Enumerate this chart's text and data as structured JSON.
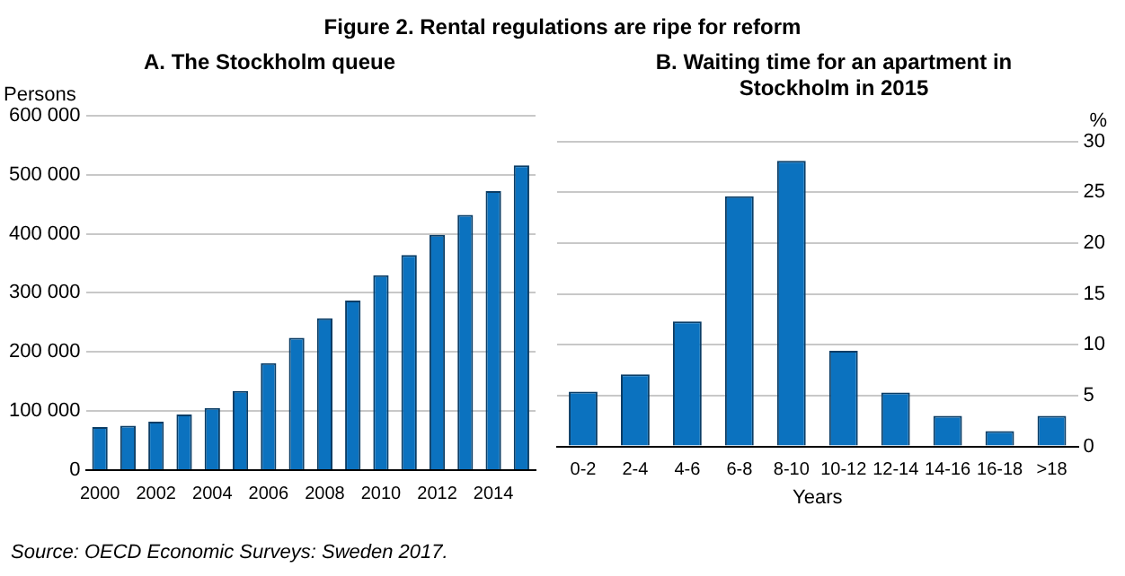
{
  "chart_data": [
    {
      "type": "other",
      "title": "Figure 2. Rental regulations are ripe for reform",
      "annotations": [
        "Source: OECD Economic Surveys: Sweden 2017."
      ]
    },
    {
      "type": "bar",
      "title": "A. The Stockholm queue",
      "ylabel": "Persons",
      "color": "#0b72bf",
      "grid": "y",
      "categories": [
        "2000",
        null,
        "2002",
        null,
        "2004",
        null,
        "2006",
        null,
        "2008",
        null,
        "2010",
        null,
        "2012",
        null,
        "2014",
        null
      ],
      "values": [
        73000,
        75000,
        82000,
        94000,
        105000,
        134000,
        181000,
        224000,
        257000,
        287000,
        330000,
        364000,
        398000,
        432000,
        472000,
        516000
      ],
      "ylim": [
        0,
        600000
      ],
      "yticks": [
        0,
        {
          "value": 100000,
          "label": "100 000"
        },
        {
          "value": 200000,
          "label": "200 000"
        },
        {
          "value": 300000,
          "label": "300 000"
        },
        {
          "value": 400000,
          "label": "400 000"
        },
        {
          "value": 500000,
          "label": "500 000"
        },
        {
          "value": 600000,
          "label": "600 000"
        }
      ]
    },
    {
      "type": "bar",
      "title": "B. Waiting time for an apartment in Stockholm in 2015",
      "ylabel": "%",
      "xlabel": "Years",
      "color": "#0b72bf",
      "grid": "y",
      "categories": [
        "0-2",
        "2-4",
        "4-6",
        "6-8",
        "8-10",
        "10-12",
        "12-14",
        "14-16",
        "16-18",
        ">18"
      ],
      "values": [
        5.4,
        7.1,
        12.3,
        24.6,
        28.1,
        9.4,
        5.3,
        3.0,
        1.5,
        3.0
      ],
      "ylim": [
        0,
        30
      ],
      "yticks": [
        0,
        5,
        10,
        15,
        20,
        25,
        30
      ]
    }
  ]
}
